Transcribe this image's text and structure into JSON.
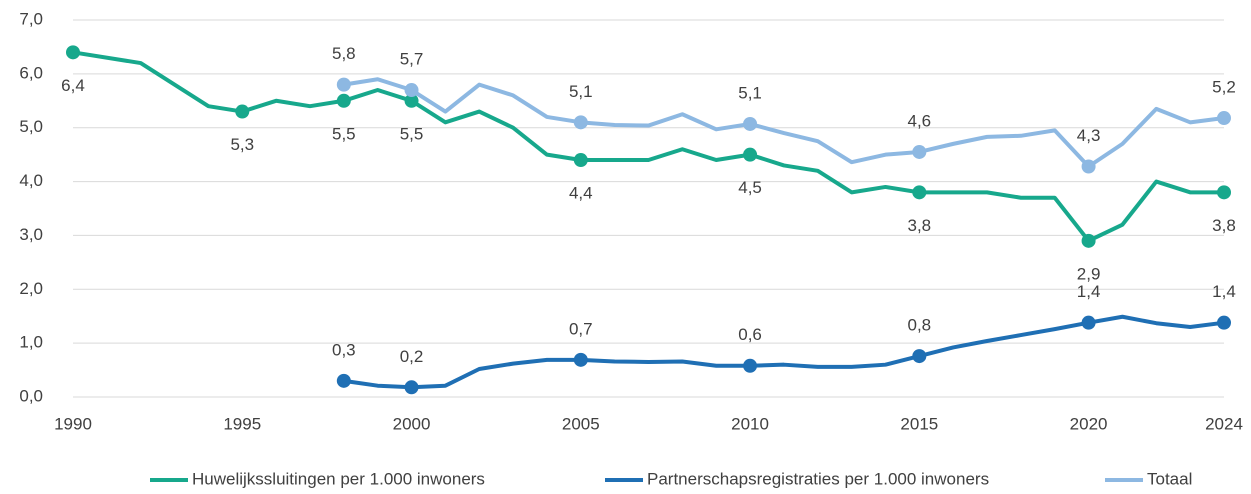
{
  "chart_data": {
    "type": "line",
    "xlim": [
      1990,
      2024
    ],
    "xticks": [
      1990,
      1995,
      2000,
      2005,
      2010,
      2015,
      2020,
      2024
    ],
    "ylim": [
      0,
      7
    ],
    "yticks": [
      {
        "value": 0,
        "label": "0,0"
      },
      {
        "value": 1,
        "label": "1,0"
      },
      {
        "value": 2,
        "label": "2,0"
      },
      {
        "value": 3,
        "label": "3,0"
      },
      {
        "value": 4,
        "label": "4,0"
      },
      {
        "value": 5,
        "label": "5,0"
      },
      {
        "value": 6,
        "label": "6,0"
      },
      {
        "value": 7,
        "label": "7,0"
      }
    ],
    "grid": true,
    "legend": "bottom",
    "series": [
      {
        "name": "Huwelijkssluitingen per 1.000 inwoners",
        "color": "#17a88c",
        "x": [
          1990,
          1992,
          1994,
          1995,
          1996,
          1997,
          1998,
          1999,
          2000,
          2001,
          2002,
          2003,
          2004,
          2005,
          2006,
          2007,
          2008,
          2009,
          2010,
          2011,
          2012,
          2013,
          2014,
          2015,
          2016,
          2017,
          2018,
          2019,
          2020,
          2021,
          2022,
          2023,
          2024
        ],
        "values": [
          6.4,
          6.2,
          5.4,
          5.3,
          5.5,
          5.4,
          5.5,
          5.7,
          5.5,
          5.1,
          5.3,
          5.0,
          4.5,
          4.4,
          4.4,
          4.4,
          4.6,
          4.4,
          4.5,
          4.3,
          4.2,
          3.8,
          3.9,
          3.8,
          3.8,
          3.8,
          3.7,
          3.7,
          2.9,
          3.2,
          4.0,
          3.8,
          3.8
        ],
        "value_labels": [
          "6,4",
          null,
          null,
          "5,3",
          null,
          null,
          "5,5",
          null,
          "5,5",
          null,
          null,
          null,
          null,
          "4,4",
          null,
          null,
          null,
          null,
          "4,5",
          null,
          null,
          null,
          null,
          "3,8",
          null,
          null,
          null,
          null,
          "2,9",
          null,
          null,
          null,
          "3,8"
        ]
      },
      {
        "name": "Partnerschapsregistraties per 1.000 inwoners",
        "color": "#1f6fb4",
        "x": [
          1998,
          1999,
          2000,
          2001,
          2002,
          2003,
          2004,
          2005,
          2006,
          2007,
          2008,
          2009,
          2010,
          2011,
          2012,
          2013,
          2014,
          2015,
          2016,
          2017,
          2018,
          2019,
          2020,
          2021,
          2022,
          2023,
          2024
        ],
        "values": [
          0.3,
          0.21,
          0.18,
          0.21,
          0.52,
          0.62,
          0.69,
          0.69,
          0.66,
          0.65,
          0.66,
          0.58,
          0.58,
          0.6,
          0.56,
          0.56,
          0.6,
          0.76,
          0.92,
          1.04,
          1.15,
          1.26,
          1.38,
          1.49,
          1.37,
          1.3,
          1.38
        ],
        "value_labels": [
          "0,3",
          null,
          "0,2",
          null,
          null,
          null,
          null,
          "0,7",
          null,
          null,
          null,
          null,
          "0,6",
          null,
          null,
          null,
          null,
          "0,8",
          null,
          null,
          null,
          null,
          "1,4",
          null,
          null,
          null,
          "1,4"
        ]
      },
      {
        "name": "Totaal",
        "color": "#8db8e2",
        "x": [
          1998,
          1999,
          2000,
          2001,
          2002,
          2003,
          2004,
          2005,
          2006,
          2007,
          2008,
          2009,
          2010,
          2011,
          2012,
          2013,
          2014,
          2015,
          2016,
          2017,
          2018,
          2019,
          2020,
          2021,
          2022,
          2023,
          2024
        ],
        "values": [
          5.8,
          5.9,
          5.7,
          5.3,
          5.8,
          5.6,
          5.2,
          5.1,
          5.05,
          5.04,
          5.25,
          4.97,
          5.07,
          4.9,
          4.75,
          4.36,
          4.5,
          4.55,
          4.7,
          4.83,
          4.85,
          4.95,
          4.28,
          4.7,
          5.35,
          5.1,
          5.18
        ],
        "value_labels": [
          "5,8",
          null,
          "5,7",
          null,
          null,
          null,
          null,
          "5,1",
          null,
          null,
          null,
          null,
          "5,1",
          null,
          null,
          null,
          null,
          "4,6",
          null,
          null,
          null,
          null,
          "4,3",
          null,
          null,
          null,
          "5,2"
        ]
      }
    ]
  }
}
